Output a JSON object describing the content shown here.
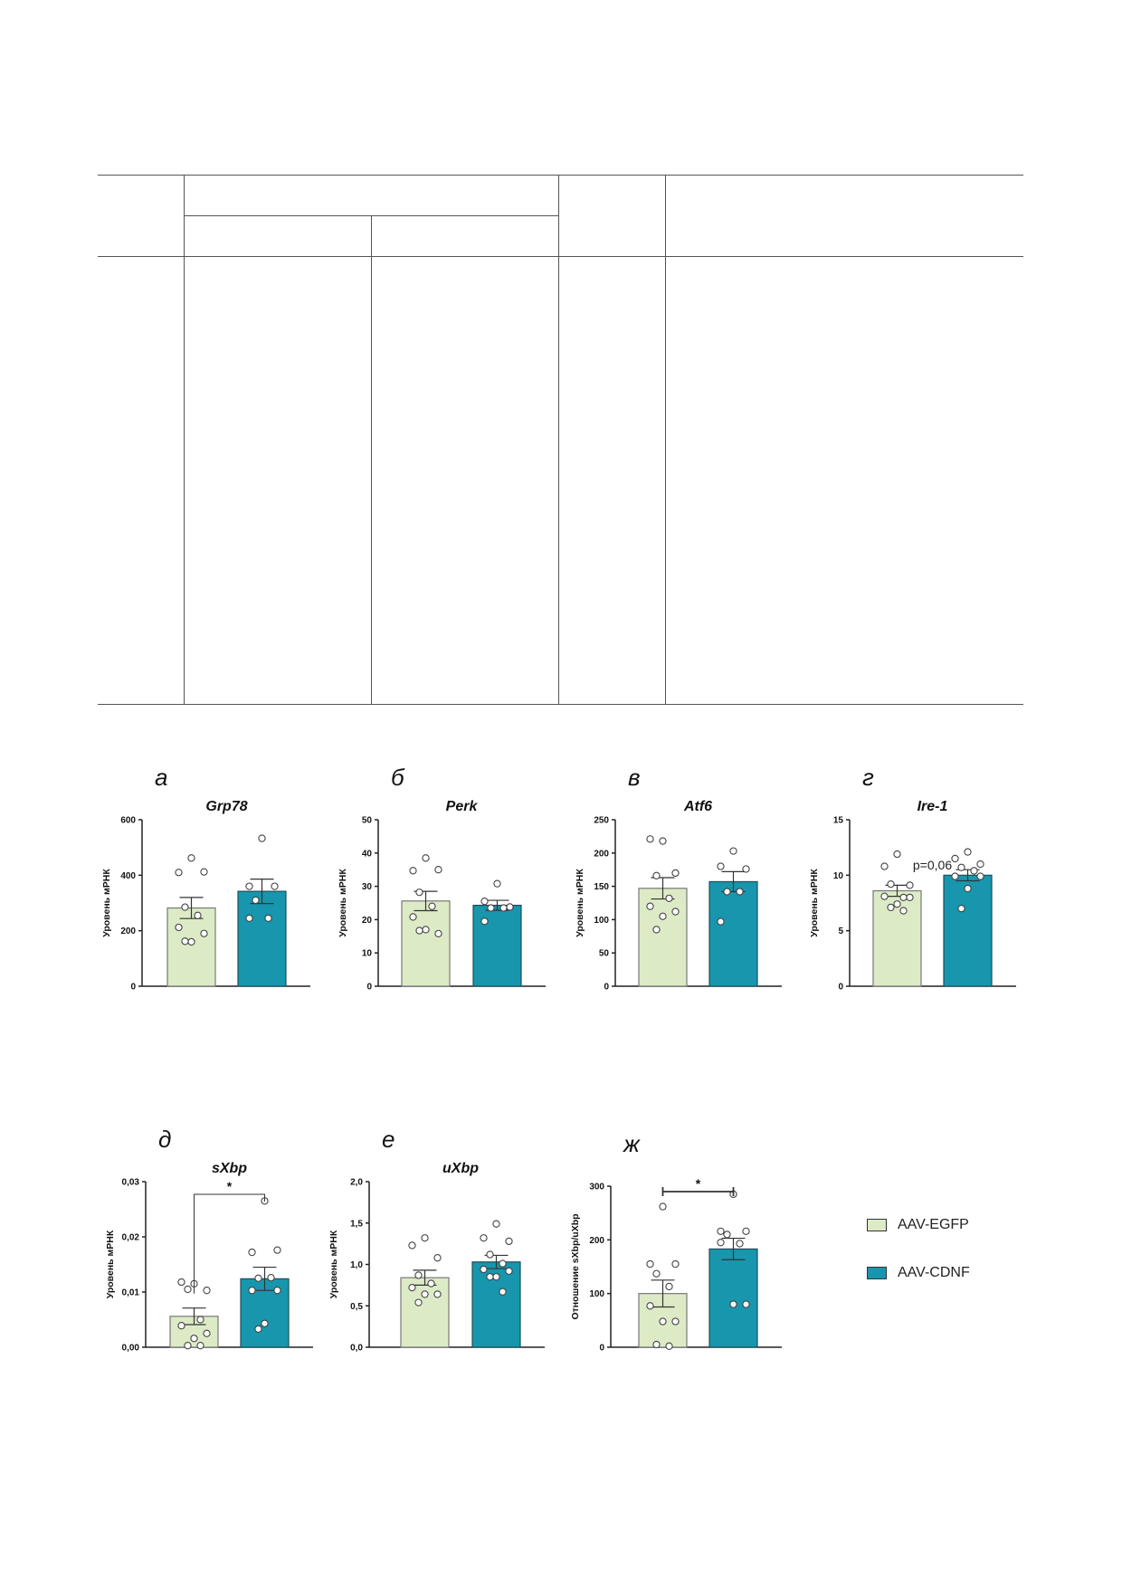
{
  "colors": {
    "egfp": "#dcebc6",
    "cdnf": "#1796ad",
    "axis": "#222"
  },
  "legend": [
    {
      "label": "AAV-EGFP",
      "color": "#dcebc6"
    },
    {
      "label": "AAV-CDNF",
      "color": "#1796ad"
    }
  ],
  "chart_data": [
    {
      "type": "bar",
      "letter": "а",
      "title": "Grp78",
      "ylabel": "Уровень мРНК",
      "ylim": [
        0,
        600
      ],
      "ticks": [
        "0",
        "200",
        "400",
        "600"
      ],
      "tickvals": [
        0,
        200,
        400,
        600
      ],
      "series": [
        {
          "name": "AAV-EGFP",
          "mean": 282,
          "sem": 38,
          "points": [
            462,
            410,
            412,
            285,
            255,
            212,
            190,
            160,
            162
          ]
        },
        {
          "name": "AAV-CDNF",
          "mean": 342,
          "sem": 44,
          "points": [
            533,
            360,
            360,
            310,
            245,
            245
          ]
        }
      ]
    },
    {
      "type": "bar",
      "letter": "б",
      "title": "Perk",
      "ylabel": "Уровень мРНК",
      "ylim": [
        0,
        50
      ],
      "ticks": [
        "0",
        "10",
        "20",
        "30",
        "40",
        "50"
      ],
      "tickvals": [
        0,
        10,
        20,
        30,
        40,
        50
      ],
      "series": [
        {
          "name": "AAV-EGFP",
          "mean": 25.6,
          "sem": 2.9,
          "points": [
            38.5,
            34.7,
            35,
            28.2,
            24,
            20.8,
            15.8,
            17,
            16.7
          ]
        },
        {
          "name": "AAV-CDNF",
          "mean": 24.3,
          "sem": 1.5,
          "points": [
            30.8,
            25.5,
            23.8,
            23.5,
            23.5,
            19.5
          ]
        }
      ]
    },
    {
      "type": "bar",
      "letter": "в",
      "title": "Atf6",
      "ylabel": "Уровень мРНК",
      "ylim": [
        0,
        250
      ],
      "ticks": [
        "0",
        "50",
        "100",
        "150",
        "200",
        "250"
      ],
      "tickvals": [
        0,
        50,
        100,
        150,
        200,
        250
      ],
      "series": [
        {
          "name": "AAV-EGFP",
          "mean": 147,
          "sem": 16,
          "points": [
            218,
            221,
            170,
            166,
            132,
            120,
            112,
            105,
            85
          ]
        },
        {
          "name": "AAV-CDNF",
          "mean": 157,
          "sem": 15,
          "points": [
            203,
            180,
            176,
            142,
            142,
            97
          ]
        }
      ]
    },
    {
      "type": "bar",
      "letter": "г",
      "title": "Ire-1",
      "ylabel": "Уровень мРНК",
      "ylim": [
        0,
        15
      ],
      "ticks": [
        "0",
        "5",
        "10",
        "15"
      ],
      "tickvals": [
        0,
        5,
        10,
        15
      ],
      "annotation": "p=0,06",
      "series": [
        {
          "name": "AAV-EGFP",
          "mean": 8.6,
          "sem": 0.5,
          "points": [
            11.9,
            10.8,
            9.1,
            9.2,
            8.0,
            8.1,
            8.0,
            7.4,
            7.1,
            6.8
          ]
        },
        {
          "name": "AAV-CDNF",
          "mean": 10.0,
          "sem": 0.5,
          "points": [
            12.1,
            11.5,
            11,
            10.7,
            10.4,
            9.9,
            9.9,
            8.8,
            7
          ]
        }
      ]
    },
    {
      "type": "bar",
      "letter": "д",
      "title": "sXbp",
      "ylabel": "Уровень мРНК",
      "ylim": [
        0,
        0.03
      ],
      "ticks": [
        "0,00",
        "0,01",
        "0,02",
        "0,03"
      ],
      "tickvals": [
        0,
        0.01,
        0.02,
        0.03
      ],
      "significance": "*",
      "series": [
        {
          "name": "AAV-EGFP",
          "mean": 0.0056,
          "sem": 0.0015,
          "points": [
            0.0115,
            0.0118,
            0.0103,
            0.0105,
            0.005,
            0.0039,
            0.0025,
            0.0016,
            0.0003,
            0.0003
          ]
        },
        {
          "name": "AAV-CDNF",
          "mean": 0.0124,
          "sem": 0.0021,
          "points": [
            0.0265,
            0.0172,
            0.0176,
            0.0125,
            0.0126,
            0.0103,
            0.0103,
            0.0043,
            0.0033
          ]
        }
      ]
    },
    {
      "type": "bar",
      "letter": "е",
      "title": "uXbp",
      "ylabel": "Уровень мРНК",
      "ylim": [
        0,
        2
      ],
      "ticks": [
        "0,0",
        "0,5",
        "1,0",
        "1,5",
        "2,0"
      ],
      "tickvals": [
        0,
        0.5,
        1,
        1.5,
        2
      ],
      "series": [
        {
          "name": "AAV-EGFP",
          "mean": 0.84,
          "sem": 0.09,
          "points": [
            1.32,
            1.23,
            1.08,
            0.87,
            0.77,
            0.72,
            0.64,
            0.64,
            0.54
          ]
        },
        {
          "name": "AAV-CDNF",
          "mean": 1.03,
          "sem": 0.08,
          "points": [
            1.49,
            1.32,
            1.28,
            1.12,
            1.01,
            0.94,
            0.92,
            0.85,
            0.85,
            0.67
          ]
        }
      ]
    },
    {
      "type": "bar",
      "letter": "ж",
      "title": "",
      "ylabel": "Отношение sXbp/uXbp",
      "ylim": [
        0,
        300
      ],
      "ticks": [
        "0",
        "100",
        "200",
        "300"
      ],
      "tickvals": [
        0,
        100,
        200,
        300
      ],
      "significance": "*",
      "series": [
        {
          "name": "AAV-EGFP",
          "mean": 100,
          "sem": 25,
          "points": [
            262,
            155,
            155,
            137,
            113,
            77,
            48,
            48,
            5,
            2
          ]
        },
        {
          "name": "AAV-CDNF",
          "mean": 183,
          "sem": 20,
          "points": [
            285,
            216,
            216,
            210,
            193,
            195,
            80,
            80
          ]
        }
      ]
    }
  ]
}
